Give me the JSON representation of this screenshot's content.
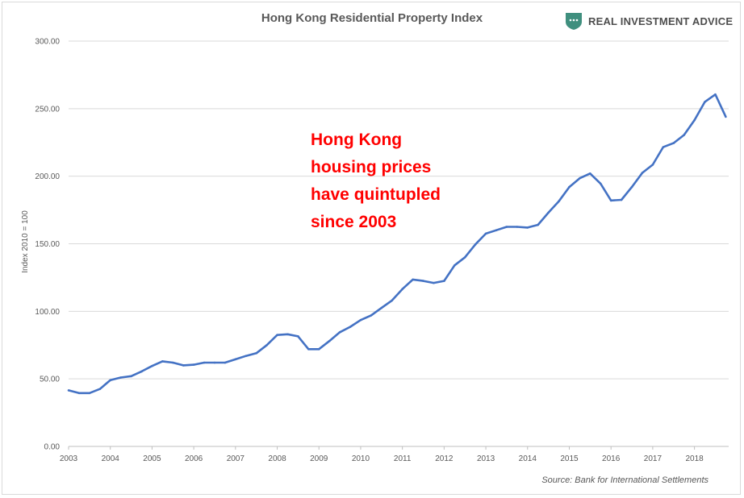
{
  "brand": {
    "name": "REAL INVESTMENT ADVICE",
    "icon": "shield-icon",
    "shield_color": "#3f8f7e"
  },
  "chart_data": {
    "type": "line",
    "title": "Hong Kong Residential Property Index",
    "ylabel": "Index 2010 = 100",
    "xlabel": "",
    "ylim": [
      0,
      300
    ],
    "xlim": [
      2003,
      2018.82
    ],
    "y_ticks": [
      "0.00",
      "50.00",
      "100.00",
      "150.00",
      "200.00",
      "250.00",
      "300.00"
    ],
    "y_tick_values": [
      0,
      50,
      100,
      150,
      200,
      250,
      300
    ],
    "x_ticks": [
      "2003",
      "2004",
      "2005",
      "2006",
      "2007",
      "2008",
      "2009",
      "2010",
      "2011",
      "2012",
      "2013",
      "2014",
      "2015",
      "2016",
      "2017",
      "2018"
    ],
    "grid": true,
    "line_color": "#4472c4",
    "annotation": [
      "Hong Kong",
      "housing prices",
      "have quintupled",
      "since 2003"
    ],
    "annotation_color": "#ff0000",
    "source": "Source: Bank for International Settlements",
    "series": [
      {
        "x": [
          2003.0,
          2003.25,
          2003.5,
          2003.75,
          2004.0,
          2004.25,
          2004.5,
          2004.75,
          2005.0,
          2005.25,
          2005.5,
          2005.75,
          2006.0,
          2006.25,
          2006.5,
          2006.75,
          2007.0,
          2007.25,
          2007.5,
          2007.75,
          2008.0,
          2008.25,
          2008.5,
          2008.75,
          2009.0,
          2009.25,
          2009.5,
          2009.75,
          2010.0,
          2010.25,
          2010.5,
          2010.75,
          2011.0,
          2011.25,
          2011.5,
          2011.75,
          2012.0,
          2012.25,
          2012.5,
          2012.75,
          2013.0,
          2013.25,
          2013.5,
          2013.75,
          2014.0,
          2014.25,
          2014.5,
          2014.75,
          2015.0,
          2015.25,
          2015.5,
          2015.75,
          2016.0,
          2016.25,
          2016.5,
          2016.75,
          2017.0,
          2017.25,
          2017.5,
          2017.75,
          2018.0,
          2018.25,
          2018.5,
          2018.75
        ],
        "values": [
          41.5,
          39.5,
          39.5,
          42.5,
          49,
          51,
          52,
          55.5,
          59.5,
          63,
          62,
          60,
          60.5,
          62,
          62,
          62,
          64.5,
          67,
          69,
          75,
          82.5,
          83,
          81.5,
          72,
          72,
          78,
          84.5,
          88.5,
          93.5,
          97,
          102.5,
          108,
          116.5,
          123.5,
          122.5,
          121,
          122.5,
          134,
          140,
          149.5,
          157.5,
          160,
          162.5,
          162.5,
          162,
          164,
          173,
          181.5,
          192,
          198.5,
          202,
          194.5,
          182,
          182.5,
          192,
          202.5,
          208.5,
          221.5,
          224.5,
          230.5,
          241.5,
          255,
          260.5,
          244
        ]
      }
    ]
  }
}
